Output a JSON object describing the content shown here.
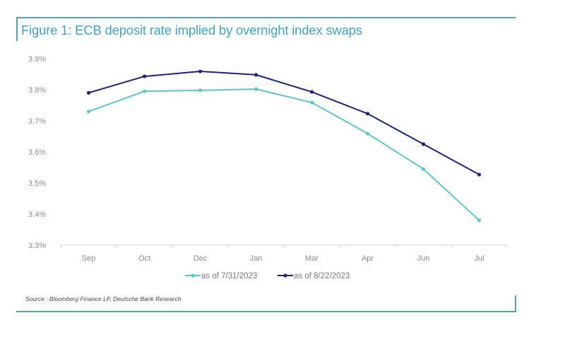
{
  "figure": {
    "title": "Figure 1: ECB deposit rate implied by overnight index swaps",
    "source": "Source : Bloomberg Finance LP, Deutsche Bank Research",
    "accent_color": "#4ba3c0"
  },
  "chart_data": {
    "type": "line",
    "title": "Figure 1: ECB deposit rate implied by overnight index swaps",
    "xlabel": "",
    "ylabel": "",
    "categories": [
      "Sep",
      "Oct",
      "Dec",
      "Jan",
      "Mar",
      "Apr",
      "Jun",
      "Jul"
    ],
    "ylim": [
      3.3,
      3.9
    ],
    "yticks": [
      3.3,
      3.4,
      3.5,
      3.6,
      3.7,
      3.8,
      3.9
    ],
    "ytick_labels": [
      "3.3%",
      "3.4%",
      "3.5%",
      "3.6%",
      "3.7%",
      "3.8%",
      "3.9%"
    ],
    "grid": false,
    "legend_position": "bottom",
    "series": [
      {
        "name": "as of 7/31/2023",
        "color": "#5bc4d4",
        "values": [
          3.73,
          3.795,
          3.798,
          3.802,
          3.759,
          3.659,
          3.545,
          3.38
        ]
      },
      {
        "name": "as of 8/22/2023",
        "color": "#1a237e",
        "values": [
          3.79,
          3.843,
          3.859,
          3.848,
          3.793,
          3.723,
          3.625,
          3.527
        ]
      }
    ]
  }
}
